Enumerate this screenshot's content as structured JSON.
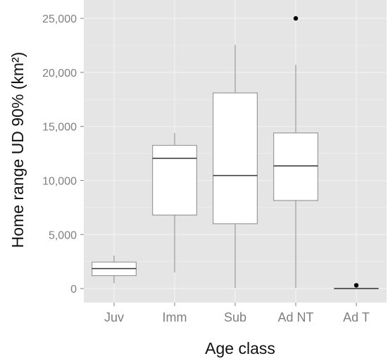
{
  "chart_data": {
    "type": "boxplot",
    "xlabel": "Age class",
    "ylabel": "Home range UD 90% (km²)",
    "categories": [
      "Juv",
      "Imm",
      "Sub",
      "Ad NT",
      "Ad T"
    ],
    "y_ticks": [
      0,
      5000,
      10000,
      15000,
      20000,
      25000
    ],
    "y_tick_labels": [
      "0",
      "5,000",
      "10,000",
      "15,000",
      "20,000",
      "25,000"
    ],
    "ylim": [
      -1300,
      26700
    ],
    "grid": true,
    "boxes": [
      {
        "category": "Juv",
        "whisker_low": 500,
        "q1": 1200,
        "median": 1850,
        "q3": 2450,
        "whisker_high": 3050,
        "outliers": []
      },
      {
        "category": "Imm",
        "whisker_low": 1500,
        "q1": 6800,
        "median": 12050,
        "q3": 13250,
        "whisker_high": 14400,
        "outliers": []
      },
      {
        "category": "Sub",
        "whisker_low": 50,
        "q1": 6000,
        "median": 10450,
        "q3": 18100,
        "whisker_high": 22550,
        "outliers": []
      },
      {
        "category": "Ad NT",
        "whisker_low": 50,
        "q1": 8150,
        "median": 11350,
        "q3": 14400,
        "whisker_high": 20700,
        "outliers": [
          25000
        ]
      },
      {
        "category": "Ad T",
        "whisker_low": 0,
        "q1": 0,
        "median": 0,
        "q3": 0,
        "whisker_high": 0,
        "outliers": [
          300
        ]
      }
    ],
    "colors": {
      "panel_background": "#e5e5e5",
      "grid": "#f2f2f2",
      "box_fill": "#ffffff",
      "line": "#333333",
      "whisker": "#9a9a9a",
      "outlier": "#000000"
    }
  }
}
